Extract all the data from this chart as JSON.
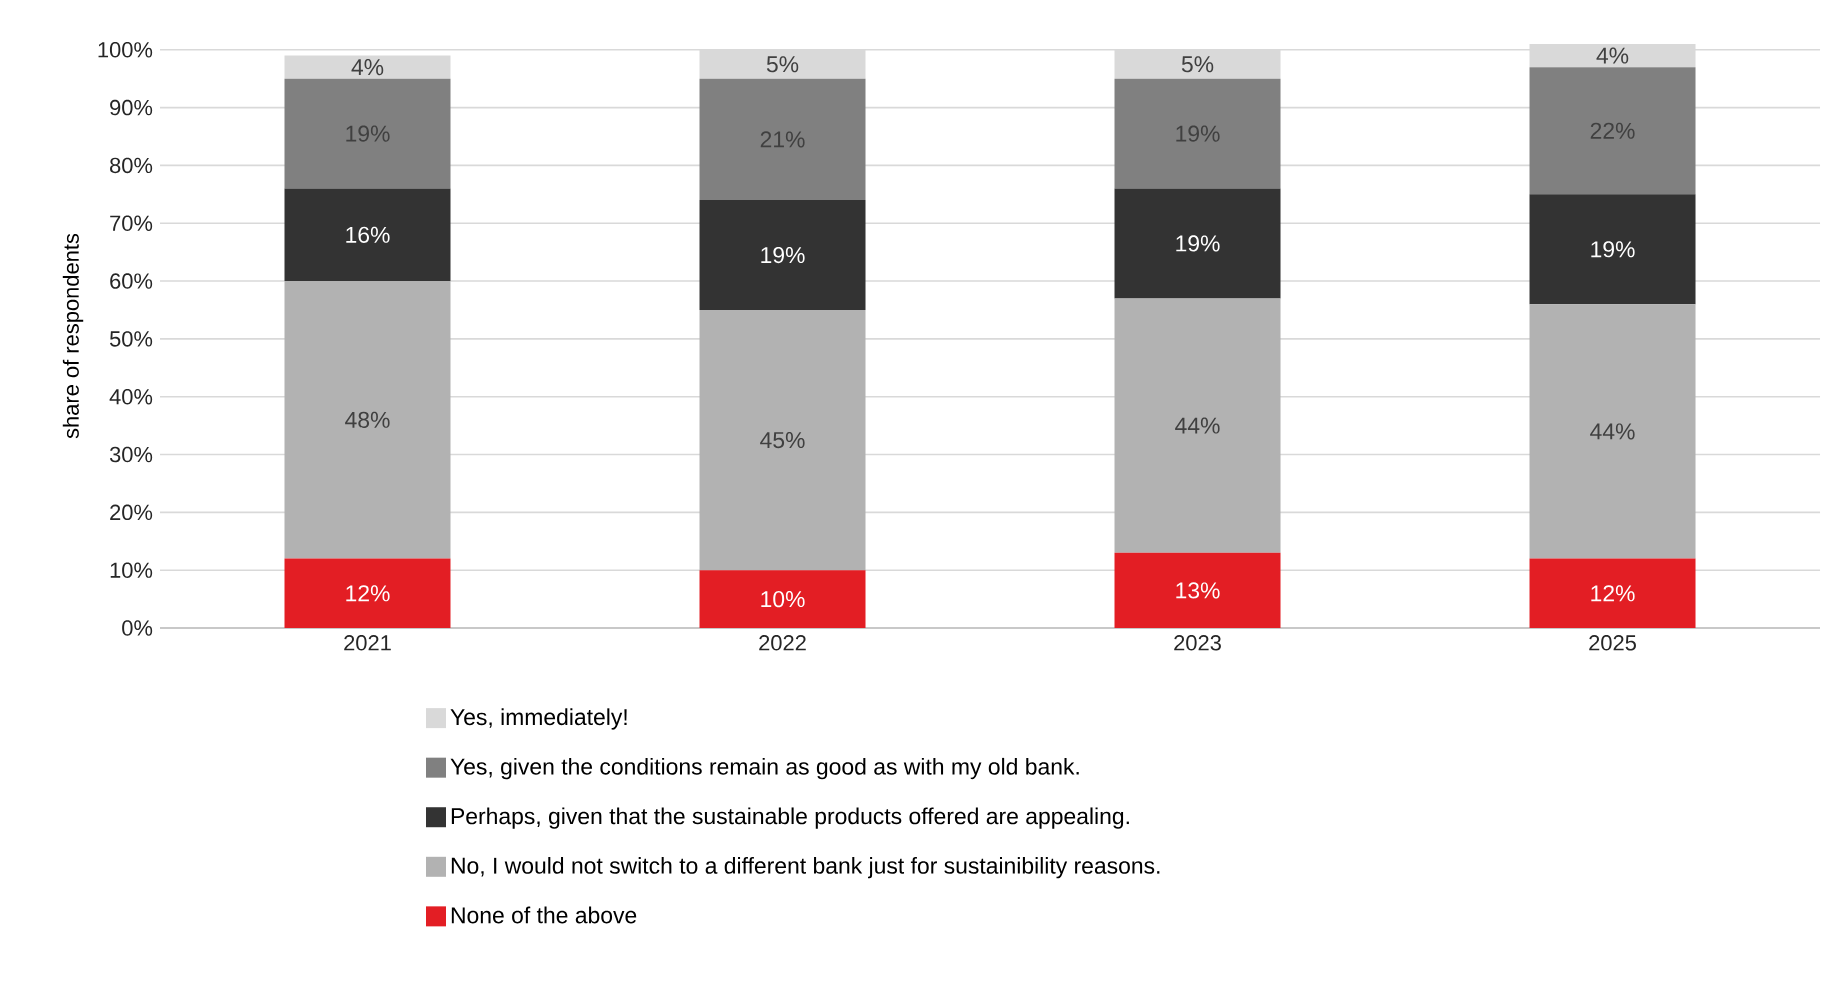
{
  "chart_data": {
    "type": "bar",
    "stacked": true,
    "ylabel": "share of respondents",
    "categories": [
      "2021",
      "2022",
      "2023",
      "2025"
    ],
    "series": [
      {
        "name": "None of the above",
        "color": "#e31e24",
        "values": [
          12,
          10,
          13,
          12
        ],
        "value_labels": [
          "12%",
          "10%",
          "13%",
          "12%"
        ]
      },
      {
        "name": "No, I would not switch to a different bank just for sustainibility reasons.",
        "color": "#b2b2b2",
        "values": [
          48,
          45,
          44,
          44
        ],
        "value_labels": [
          "48%",
          "45%",
          "44%",
          "44%"
        ]
      },
      {
        "name": "Perhaps, given that the sustainable products offered are appealing.",
        "color": "#333333",
        "values": [
          16,
          19,
          19,
          19
        ],
        "value_labels": [
          "16%",
          "19%",
          "19%",
          "19%"
        ]
      },
      {
        "name": "Yes, given the conditions remain as good as with my old bank.",
        "color": "#808080",
        "values": [
          19,
          21,
          19,
          22
        ],
        "value_labels": [
          "19%",
          "21%",
          "19%",
          "22%"
        ]
      },
      {
        "name": "Yes, immediately!",
        "color": "#d9d9d9",
        "values": [
          4,
          5,
          5,
          4
        ],
        "value_labels": [
          "4%",
          "5%",
          "5%",
          "4%"
        ]
      }
    ],
    "ylim": [
      0,
      101
    ],
    "yticks": [
      {
        "value": 0,
        "label": "0%"
      },
      {
        "value": 10,
        "label": "10%"
      },
      {
        "value": 20,
        "label": "20%"
      },
      {
        "value": 30,
        "label": "30%"
      },
      {
        "value": 40,
        "label": "40%"
      },
      {
        "value": 50,
        "label": "50%"
      },
      {
        "value": 60,
        "label": "60%"
      },
      {
        "value": 70,
        "label": "70%"
      },
      {
        "value": 80,
        "label": "80%"
      },
      {
        "value": 90,
        "label": "90%"
      },
      {
        "value": 100,
        "label": "100%"
      }
    ],
    "grid": "y",
    "legend": "bottom"
  }
}
